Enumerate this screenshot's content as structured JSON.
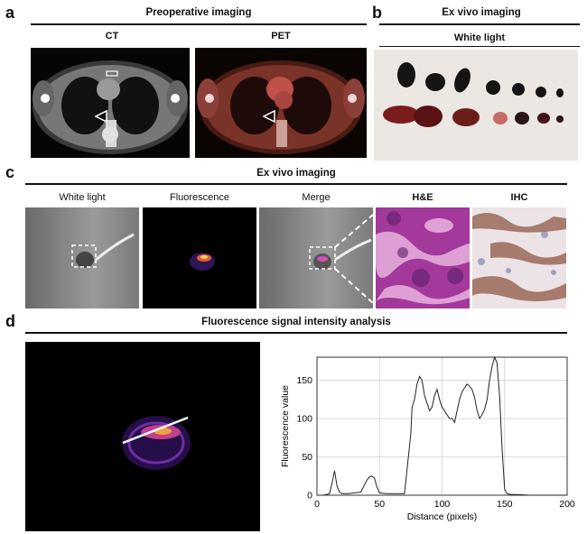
{
  "panel_a": {
    "letter": "a",
    "title": "Preoperative imaging",
    "ct_label": "CT",
    "pet_label": "PET"
  },
  "panel_b": {
    "letter": "b",
    "title": "Ex vivo imaging",
    "subtitle": "White light"
  },
  "panel_c": {
    "letter": "c",
    "title": "Ex vivo imaging",
    "labels": [
      "White light",
      "Fluorescence",
      "Merge",
      "H&E",
      "IHC"
    ]
  },
  "panel_d": {
    "letter": "d",
    "title": "Fluorescence signal intensity analysis"
  },
  "chart_data": {
    "type": "line",
    "xlabel": "Distance (pixels)",
    "ylabel": "Fluorescence value",
    "xlim": [
      0,
      200
    ],
    "ylim": [
      0,
      180
    ],
    "xticks": [
      0,
      50,
      100,
      150,
      200
    ],
    "yticks": [
      0,
      50,
      100,
      150
    ],
    "grid": true,
    "x": [
      0,
      5,
      10,
      12,
      14,
      16,
      18,
      20,
      25,
      30,
      35,
      40,
      42,
      44,
      46,
      48,
      50,
      55,
      60,
      65,
      70,
      75,
      76,
      78,
      80,
      82,
      84,
      86,
      88,
      90,
      92,
      94,
      96,
      98,
      100,
      102,
      104,
      106,
      108,
      110,
      112,
      114,
      116,
      118,
      120,
      122,
      124,
      126,
      128,
      130,
      132,
      134,
      136,
      138,
      140,
      142,
      144,
      146,
      148,
      150,
      152,
      155,
      160,
      170,
      180,
      190,
      200
    ],
    "y": [
      0,
      0,
      2,
      15,
      32,
      12,
      4,
      2,
      2,
      3,
      4,
      20,
      24,
      25,
      22,
      10,
      3,
      2,
      2,
      2,
      2,
      80,
      115,
      125,
      145,
      155,
      150,
      130,
      120,
      110,
      115,
      130,
      138,
      125,
      115,
      110,
      105,
      100,
      100,
      95,
      110,
      125,
      135,
      140,
      145,
      142,
      138,
      128,
      110,
      100,
      105,
      112,
      125,
      150,
      168,
      180,
      172,
      130,
      60,
      8,
      2,
      1,
      1,
      0,
      0,
      0,
      0
    ]
  }
}
